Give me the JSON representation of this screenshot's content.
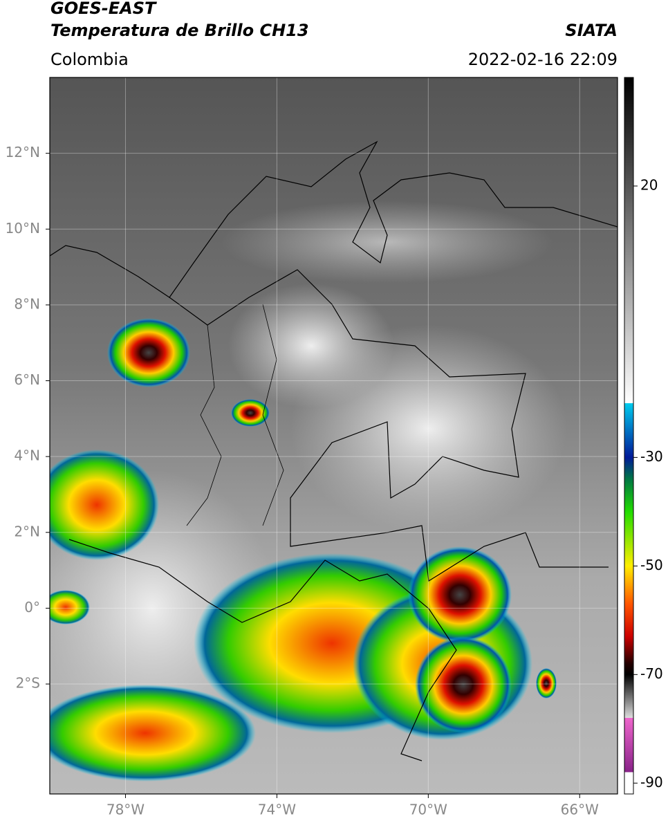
{
  "header": {
    "title": "GOES-EAST",
    "subtitle": "Temperatura de Brillo CH13",
    "source": "SIATA",
    "region": "Colombia",
    "datetime": "2022-02-16 22:09"
  },
  "map": {
    "lonlim": [
      -80,
      -65
    ],
    "latlim": [
      -4.9,
      14
    ],
    "lonticks": [
      {
        "value": -78,
        "label": "78°W"
      },
      {
        "value": -74,
        "label": "74°W"
      },
      {
        "value": -70,
        "label": "70°W"
      },
      {
        "value": -66,
        "label": "66°W"
      }
    ],
    "latticks": [
      {
        "value": 12,
        "label": "12°N"
      },
      {
        "value": 10,
        "label": "10°N"
      },
      {
        "value": 8,
        "label": "8°N"
      },
      {
        "value": 6,
        "label": "6°N"
      },
      {
        "value": 4,
        "label": "4°N"
      },
      {
        "value": 2,
        "label": "2°N"
      },
      {
        "value": 0,
        "label": "0°"
      },
      {
        "value": -2,
        "label": "2°S"
      }
    ],
    "grid": true
  },
  "colorbar": {
    "clim": [
      -92,
      40
    ],
    "ticks": [
      20,
      -30,
      -50,
      -70,
      -90
    ],
    "colormap": [
      [
        40,
        "#000000"
      ],
      [
        -20,
        "#ffffff"
      ],
      [
        -20,
        "#00ccee"
      ],
      [
        -30,
        "#001a99"
      ],
      [
        -34,
        "#007744"
      ],
      [
        -40,
        "#22dd00"
      ],
      [
        -50,
        "#ffee00"
      ],
      [
        -57,
        "#ff5500"
      ],
      [
        -63,
        "#cc0000"
      ],
      [
        -68,
        "#220000"
      ],
      [
        -70,
        "#000000"
      ],
      [
        -78,
        "#dddddd"
      ],
      [
        -78,
        "#ee66cc"
      ],
      [
        -88,
        "#882288"
      ],
      [
        -88,
        "#ffffff"
      ],
      [
        -92,
        "#ffffff"
      ]
    ]
  }
}
